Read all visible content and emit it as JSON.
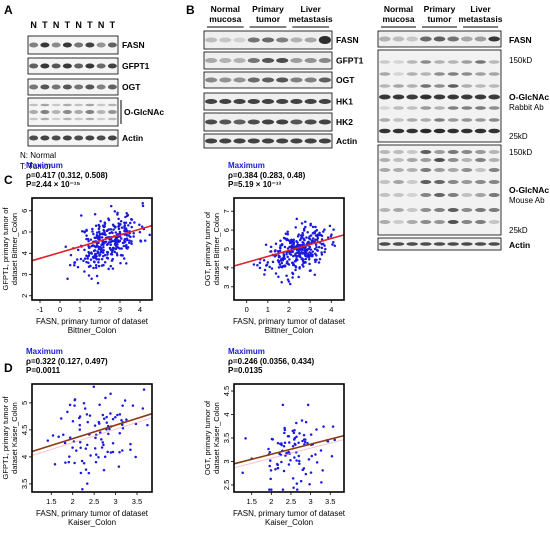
{
  "panels": {
    "A": "A",
    "B": "B",
    "C": "C",
    "D": "D"
  },
  "panel_a": {
    "lanes": [
      "N",
      "T",
      "N",
      "T",
      "N",
      "T",
      "N",
      "T"
    ],
    "rows": [
      "FASN",
      "GFPT1",
      "OGT",
      "O-GlcNAc",
      "Actin"
    ],
    "legend_n": "N: Normal",
    "legend_t": "T: Tumor"
  },
  "panel_b_left": {
    "groups": [
      "Normal mucosa",
      "Primary tumor",
      "Liver metastasis"
    ],
    "group_lines": [
      [
        "Normal",
        "mucosa"
      ],
      [
        "Primary",
        "tumor"
      ],
      [
        "Liver",
        "metastasis"
      ]
    ],
    "rows": [
      "FASN",
      "GFPT1",
      "OGT",
      "HK1",
      "HK2",
      "Actin"
    ]
  },
  "panel_b_right": {
    "group_lines": [
      [
        "Normal",
        "mucosa"
      ],
      [
        "Primary",
        "tumor"
      ],
      [
        "Liver",
        "metastasis"
      ]
    ],
    "top_row": "FASN",
    "markers": [
      "150kD",
      "25kD",
      "150kD",
      "25kD"
    ],
    "rabbit_label": [
      "O-GlcNAc",
      "Rabbit Ab"
    ],
    "mouse_label": [
      "O-GlcNAc",
      "Mouse Ab"
    ],
    "bottom_row": "Actin"
  },
  "chart_data": [
    {
      "id": "C-left",
      "type": "scatter",
      "header": "Maximum",
      "stat_rho": "ρ=0.417 (0.312, 0.508)",
      "stat_p": "P=2.44 × 10⁻¹⁵",
      "ylabel_lines": [
        "GFPT1, primary tumor of",
        "dataset Bittner_Colon"
      ],
      "xlabel_lines": [
        "FASN, primary tumor of dataset",
        "Bittner_Colon"
      ],
      "xlim": [
        -1.4,
        4.6
      ],
      "ylim": [
        1.8,
        6.6
      ],
      "xticks": [
        -1,
        0,
        1,
        2,
        3,
        4
      ],
      "yticks": [
        2,
        3,
        4,
        5,
        6
      ],
      "fit": [
        [
          -1.4,
          3.65
        ],
        [
          4.6,
          5.3
        ]
      ],
      "n": 330,
      "cx": 2.4,
      "cy": 4.55,
      "sx": 0.75,
      "sy": 0.65,
      "r": 0.42,
      "seed": 11
    },
    {
      "id": "C-right",
      "type": "scatter",
      "header": "Maximum",
      "stat_rho": "ρ=0.384 (0.283, 0.48)",
      "stat_p": "P=5.19 × 10⁻¹³",
      "ylabel_lines": [
        "OGT, primary tumor of",
        "dataset Bittner_Colon"
      ],
      "xlabel_lines": [
        "FASN, primary tumor of dataset",
        "Bittner_Colon"
      ],
      "xlim": [
        -0.6,
        4.6
      ],
      "ylim": [
        2.3,
        7.7
      ],
      "xticks": [
        0,
        1,
        2,
        3,
        4
      ],
      "yticks": [
        3,
        4,
        5,
        6,
        7
      ],
      "fit": [
        [
          -0.6,
          4.1
        ],
        [
          4.6,
          5.75
        ]
      ],
      "n": 330,
      "cx": 2.4,
      "cy": 4.9,
      "sx": 0.7,
      "sy": 0.6,
      "r": 0.38,
      "seed": 23
    },
    {
      "id": "D-left",
      "type": "scatter",
      "header": "Maximum",
      "stat_rho": "ρ=0.322 (0.127, 0.497)",
      "stat_p": "P=0.0011",
      "ylabel_lines": [
        "GFPT1, primary tumor of",
        "dataset Kaiser_Colon"
      ],
      "xlabel_lines": [
        "FASN, primary tumor of dataset",
        "Kaiser_Colon"
      ],
      "xlim": [
        1.05,
        3.85
      ],
      "ylim": [
        3.35,
        5.35
      ],
      "xticks": [
        1.5,
        2.0,
        2.5,
        3.0,
        3.5
      ],
      "yticks": [
        3.5,
        4.0,
        4.5,
        5.0
      ],
      "fit": [
        [
          1.05,
          4.1
        ],
        [
          3.85,
          4.8
        ]
      ],
      "n": 100,
      "cx": 2.6,
      "cy": 4.45,
      "sx": 0.5,
      "sy": 0.42,
      "r": 0.32,
      "seed": 37
    },
    {
      "id": "D-right",
      "type": "scatter",
      "header": "Maximum",
      "stat_rho": "ρ=0.246 (0.0356, 0.434)",
      "stat_p": "P=0.0135",
      "ylabel_lines": [
        "OGT, primary tumor of",
        "dataset Kaiser_Colon"
      ],
      "xlabel_lines": [
        "FASN, primary tumor of dataset",
        "Kaiser_Colon"
      ],
      "xlim": [
        1.05,
        3.85
      ],
      "ylim": [
        2.35,
        4.65
      ],
      "xticks": [
        1.5,
        2.0,
        2.5,
        3.0,
        3.5
      ],
      "yticks": [
        2.5,
        3.0,
        3.5,
        4.0,
        4.5
      ],
      "fit": [
        [
          1.05,
          2.95
        ],
        [
          3.85,
          3.55
        ]
      ],
      "n": 100,
      "cx": 2.6,
      "cy": 3.25,
      "sx": 0.5,
      "sy": 0.42,
      "r": 0.25,
      "seed": 53
    }
  ],
  "colors": {
    "points": "#1a1adf",
    "fit": "#e0202a",
    "fit_d": "#8a3a10",
    "header": "#1a1adf",
    "band": "#222222"
  }
}
